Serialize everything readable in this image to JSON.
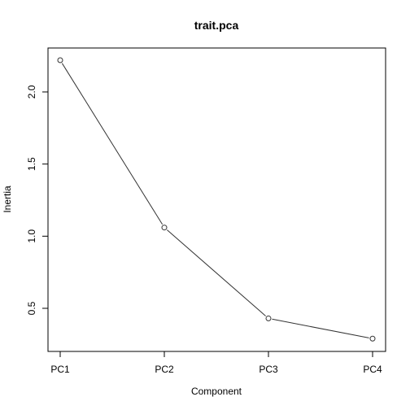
{
  "chart_data": {
    "type": "line",
    "title": "trait.pca",
    "xlabel": "Component",
    "ylabel": "Inertia",
    "categories": [
      "PC1",
      "PC2",
      "PC3",
      "PC4"
    ],
    "series": [
      {
        "values": [
          2.22,
          1.06,
          0.43,
          0.29
        ]
      }
    ],
    "ylim": [
      0.2,
      2.3
    ],
    "yticks": [
      {
        "value": 0.5,
        "label": "0.5"
      },
      {
        "value": 1.0,
        "label": "1.0"
      },
      {
        "value": 1.5,
        "label": "1.5"
      },
      {
        "value": 2.0,
        "label": "2.0"
      }
    ],
    "markers": "open-circle",
    "grid": false,
    "line_color": "#333333"
  }
}
